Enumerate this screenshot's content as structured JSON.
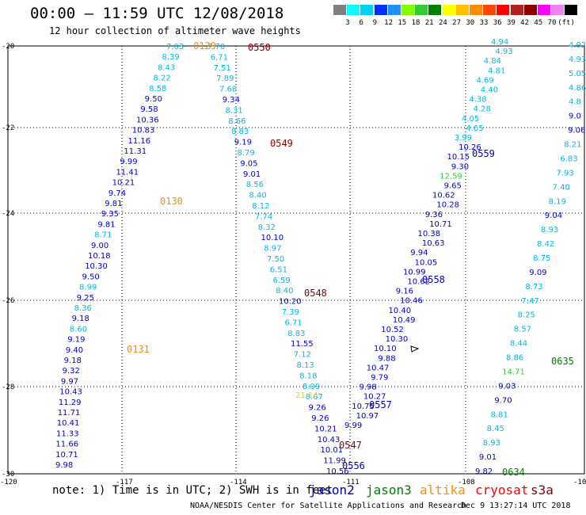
{
  "title": "00:00 – 11:59 UTC 12/08/2018",
  "subtitle": "12 hour collection of altimeter wave heights",
  "legend": {
    "colors": [
      "#7f7f7f",
      "#00ffff",
      "#00d0ff",
      "#0030ff",
      "#1e90ff",
      "#7fff00",
      "#32cd32",
      "#008000",
      "#ffff00",
      "#ffc000",
      "#ff8c00",
      "#ff4500",
      "#ff0000",
      "#b22222",
      "#8b0000",
      "#ff00ff",
      "#ee82ee",
      "#000000"
    ],
    "labels": [
      "3",
      "6",
      "9",
      "12",
      "15",
      "18",
      "21",
      "24",
      "27",
      "30",
      "33",
      "36",
      "39",
      "42",
      "45",
      "70",
      "(ft)"
    ]
  },
  "axes": {
    "lat_labels": [
      "-20",
      "-22",
      "-24",
      "-26",
      "-28",
      "-30"
    ],
    "lon_labels": [
      "-120",
      "-117",
      "-114",
      "-111",
      "-108",
      "-10"
    ]
  },
  "tracks": [
    {
      "values": [
        "7.03",
        "7.70",
        "8.39",
        "6.71",
        "8.43",
        "7.51",
        "8.22",
        "7.89",
        "8.58",
        "7.68",
        "9.50",
        "9.34",
        "9.58",
        "8.31",
        "10.36",
        "8.66",
        "10.83",
        "8.83",
        "11.16",
        "9.19",
        "11.31",
        "8.79",
        "9.99",
        "9.05",
        "11.41",
        "9.01",
        "10.21",
        "8.56",
        "9.74",
        "8.40",
        "9.81",
        "8.12",
        "9.35",
        "7.74",
        "9.81",
        "8.32",
        "8.71",
        "10.10",
        "9.00",
        "8.97",
        "10.18",
        "7.50",
        "10.30",
        "6.51",
        "9.50",
        "6.59",
        "8.99",
        "8.40",
        "9.25",
        "10.20",
        "8.36",
        "7.39",
        "9.18",
        "6.71",
        "8.60",
        "8.83",
        "9.19",
        "11.55",
        "9.40",
        "7.12",
        "9.18",
        "8.13",
        "9.32",
        "8.18",
        "9.97",
        "8.09",
        "10.43",
        "8.67",
        "11.29",
        "9.26",
        "11.71",
        "9.26",
        "10.41",
        "10.21",
        "11.33",
        "10.43",
        "11.66",
        "10.01",
        "10.71",
        "11.99",
        "9.98",
        "10.56"
      ]
    },
    {
      "values": [
        "4.94",
        "4.93",
        "4.84",
        "4.81",
        "4.69",
        "4.40",
        "4.38",
        "4.28",
        "4.05",
        "4.65",
        "3.99",
        "10.26",
        "10.15",
        "9.30",
        "12.59",
        "9.65",
        "10.62",
        "10.28",
        "9.36",
        "10.71",
        "10.38",
        "10.63",
        "9.94",
        "10.05",
        "10.99",
        "10.62",
        "9.16",
        "10.46",
        "10.40",
        "10.49",
        "10.52",
        "10.30",
        "10.10",
        "9.88",
        "10.47",
        "9.79",
        "9.98",
        "10.27",
        "10.75",
        "10.97",
        "9.99"
      ]
    },
    {
      "values": [
        "4.92",
        "4.93",
        "5.05",
        "4.86",
        "4.8",
        "9.0",
        "9.06",
        "8.21",
        "6.83",
        "7.93",
        "7.40",
        "8.19",
        "9.04",
        "8.93",
        "8.42",
        "8.75",
        "9.09",
        "8.73",
        "7.47",
        "8.25",
        "8.57",
        "8.44",
        "8.86",
        "14.71",
        "9.03",
        "9.70",
        "8.81",
        "8.45",
        "8.93",
        "9.01",
        "9.82"
      ]
    }
  ],
  "times": [
    {
      "text": "0129",
      "color": "#ff8c00"
    },
    {
      "text": "0550",
      "color": "#8b0000"
    },
    {
      "text": "0549",
      "color": "#8b0000"
    },
    {
      "text": "0130",
      "color": "#ff8c00"
    },
    {
      "text": "0548",
      "color": "#8b0000"
    },
    {
      "text": "0131",
      "color": "#ff8c00"
    },
    {
      "text": "0547",
      "color": "#8b0000"
    },
    {
      "text": "0559",
      "color": "#0000cd"
    },
    {
      "text": "0558",
      "color": "#0000cd"
    },
    {
      "text": "0557",
      "color": "#0000cd"
    },
    {
      "text": "0556",
      "color": "#0000cd"
    },
    {
      "text": "0635",
      "color": "#008000"
    },
    {
      "text": "0634",
      "color": "#008000"
    }
  ],
  "satellites": [
    {
      "name": "jason2",
      "color": "#0000cd"
    },
    {
      "name": "jason3",
      "color": "#008000"
    },
    {
      "name": "altika",
      "color": "#ff8c00"
    },
    {
      "name": "cryosat",
      "color": "#ff0000"
    },
    {
      "name": "s3a",
      "color": "#8b0000"
    }
  ],
  "note": "note: 1) Time is in UTC; 2) SWH is in feet",
  "footer": {
    "credit": "NOAA/NESDIS Center for Satellite Applications and Research",
    "timestamp": "Dec  9 13:27:14 UTC 2018"
  },
  "special": {
    "text": "21.14",
    "color": "#dddd00"
  }
}
